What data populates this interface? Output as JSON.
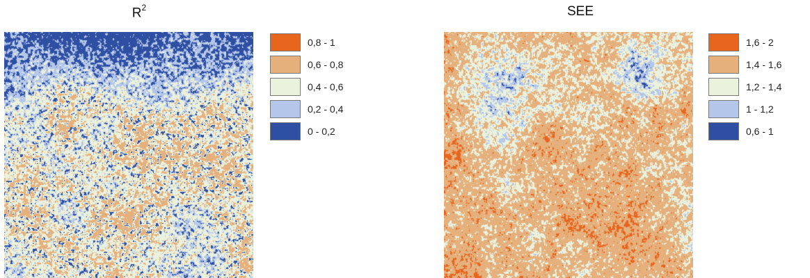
{
  "panels": [
    {
      "title": "R",
      "title_superscript": "2",
      "legend": [
        {
          "label": "0,8 - 1",
          "color": "#e8651e"
        },
        {
          "label": "0,6 - 0,8",
          "color": "#e5b07c"
        },
        {
          "label": "0,4 - 0,6",
          "color": "#eaf1dd"
        },
        {
          "label": "0,2 - 0,4",
          "color": "#b4c7ea"
        },
        {
          "label": "0 - 0,2",
          "color": "#2f4fa3"
        }
      ]
    },
    {
      "title": "SEE",
      "title_superscript": "",
      "legend": [
        {
          "label": "1,6 - 2",
          "color": "#e8651e"
        },
        {
          "label": "1,4 - 1,6",
          "color": "#e5b07c"
        },
        {
          "label": "1,2 - 1,4",
          "color": "#eaf1dd"
        },
        {
          "label": "1 - 1,2",
          "color": "#b4c7ea"
        },
        {
          "label": "0,6 - 1",
          "color": "#2f4fa3"
        }
      ]
    }
  ]
}
